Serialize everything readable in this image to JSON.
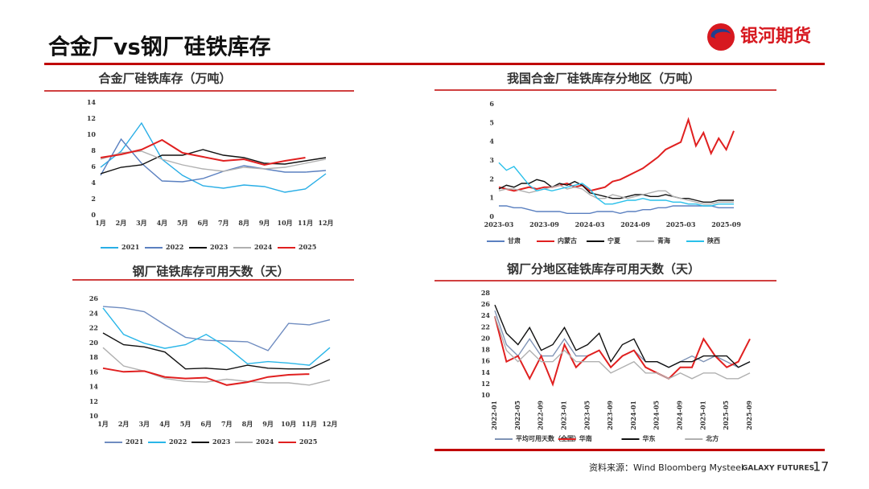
{
  "header": {
    "title": "合金厂vs钢厂硅铁库存",
    "logo_text": "银河期货"
  },
  "footer": {
    "source": "资料来源：Wind Bloomberg Mysteel",
    "brand": "GALAXY FUTURES",
    "page": "17"
  },
  "chart_data": [
    {
      "type": "line",
      "title": "合金厂硅铁库存（万吨）",
      "categories": [
        "1月",
        "2月",
        "3月",
        "4月",
        "5月",
        "6月",
        "7月",
        "8月",
        "9月",
        "10月",
        "11月",
        "12月"
      ],
      "ylim": [
        0,
        14
      ],
      "yticks": [
        0,
        2,
        4,
        6,
        8,
        10,
        12,
        14
      ],
      "series": [
        {
          "name": "2021",
          "color": "#29aee6",
          "values": [
            6,
            8,
            11.5,
            7,
            5,
            3.7,
            3.4,
            3.8,
            3.6,
            2.9,
            3.3,
            5.2
          ]
        },
        {
          "name": "2022",
          "color": "#5b80c0",
          "values": [
            5,
            9.5,
            6.5,
            4.3,
            4.2,
            4.6,
            5.5,
            6.2,
            5.8,
            5.4,
            5.4,
            5.6
          ]
        },
        {
          "name": "2023",
          "color": "#111111",
          "values": [
            5.2,
            6,
            6.3,
            7.5,
            7.5,
            8.2,
            7.5,
            7.2,
            6.5,
            6.4,
            6.8,
            7.2
          ]
        },
        {
          "name": "2024",
          "color": "#b0b0b0",
          "values": [
            7,
            7.8,
            8,
            7,
            6.3,
            5.8,
            5.5,
            6,
            5.8,
            6,
            6.5,
            7
          ]
        },
        {
          "name": "2025",
          "color": "#e02020",
          "values": [
            7.2,
            7.6,
            8.2,
            9.4,
            7.8,
            7.3,
            6.8,
            7,
            6.3,
            6.8,
            7.2,
            null
          ]
        }
      ]
    },
    {
      "type": "line",
      "title": "我国合金厂硅铁库存分地区（万吨）",
      "categories": [
        "2023-03",
        null,
        null,
        null,
        null,
        null,
        "2023-09",
        null,
        null,
        null,
        null,
        null,
        "2024-03",
        null,
        null,
        null,
        null,
        null,
        "2024-09",
        null,
        null,
        null,
        null,
        null,
        "2025-03",
        null,
        null,
        null,
        null,
        null,
        "2025-09",
        null
      ],
      "ylim": [
        0,
        6
      ],
      "yticks": [
        0,
        1,
        2,
        3,
        4,
        5,
        6
      ],
      "series": [
        {
          "name": "甘肃",
          "color": "#5b80c0",
          "values": [
            0.6,
            0.6,
            0.5,
            0.5,
            0.4,
            0.3,
            0.3,
            0.3,
            0.3,
            0.2,
            0.2,
            0.2,
            0.2,
            0.3,
            0.3,
            0.3,
            0.2,
            0.3,
            0.3,
            0.4,
            0.4,
            0.5,
            0.5,
            0.6,
            0.6,
            0.6,
            0.6,
            0.6,
            0.6,
            0.5,
            0.5,
            0.5
          ]
        },
        {
          "name": "内蒙古",
          "color": "#e02020",
          "values": [
            1.6,
            1.5,
            1.4,
            1.5,
            1.6,
            1.5,
            1.6,
            1.6,
            1.7,
            1.8,
            1.6,
            1.7,
            1.4,
            1.5,
            1.6,
            1.9,
            2.0,
            2.2,
            2.4,
            2.6,
            2.9,
            3.2,
            3.6,
            3.8,
            4.0,
            5.2,
            3.8,
            4.5,
            3.4,
            4.2,
            3.6,
            4.6
          ]
        },
        {
          "name": "宁夏",
          "color": "#111111",
          "values": [
            1.5,
            1.7,
            1.6,
            1.8,
            1.8,
            2.0,
            1.9,
            1.6,
            1.8,
            1.7,
            1.9,
            1.7,
            1.3,
            1.2,
            1.1,
            1.0,
            1.0,
            1.1,
            1.2,
            1.2,
            1.1,
            1.1,
            1.2,
            1.1,
            1.0,
            1.0,
            0.9,
            0.8,
            0.8,
            0.9,
            0.9,
            0.9
          ]
        },
        {
          "name": "青海",
          "color": "#b0b0b0",
          "values": [
            1.4,
            1.5,
            1.5,
            1.4,
            1.3,
            1.4,
            1.5,
            1.6,
            1.7,
            1.5,
            1.6,
            1.5,
            1.2,
            1.0,
            1.0,
            1.2,
            1.1,
            1.0,
            1.1,
            1.2,
            1.3,
            1.4,
            1.4,
            1.1,
            1.0,
            0.9,
            0.8,
            0.7,
            0.7,
            0.8,
            0.8,
            0.8
          ]
        },
        {
          "name": "陕西",
          "color": "#29c0ea",
          "values": [
            2.9,
            2.5,
            2.7,
            2.2,
            1.7,
            1.4,
            1.5,
            1.4,
            1.5,
            1.6,
            1.7,
            1.8,
            1.5,
            1.0,
            0.7,
            0.7,
            0.8,
            0.9,
            0.9,
            1.0,
            0.9,
            0.9,
            0.9,
            0.8,
            0.8,
            0.7,
            0.7,
            0.6,
            0.6,
            0.7,
            0.7,
            0.7
          ]
        }
      ]
    },
    {
      "type": "line",
      "title": "钢厂硅铁库存可用天数（天）",
      "categories": [
        "1月",
        "2月",
        "3月",
        "4月",
        "5月",
        "6月",
        "7月",
        "8月",
        "9月",
        "10月",
        "11月",
        "12月"
      ],
      "ylim": [
        10,
        26
      ],
      "yticks": [
        10,
        12,
        14,
        16,
        18,
        20,
        22,
        24,
        26
      ],
      "series": [
        {
          "name": "2021",
          "color": "#6f8cc0",
          "values": [
            25,
            24.8,
            24.3,
            22.5,
            20.8,
            20.4,
            20.3,
            20.2,
            19,
            22.7,
            22.5,
            23.2
          ]
        },
        {
          "name": "2022",
          "color": "#29b6e8",
          "values": [
            24.8,
            21.2,
            20,
            19.3,
            19.8,
            21.2,
            19.5,
            17.2,
            17.5,
            17.3,
            17,
            19.4
          ]
        },
        {
          "name": "2023",
          "color": "#111111",
          "values": [
            21.4,
            19.8,
            19.5,
            18.8,
            16.5,
            16.6,
            16.4,
            17,
            16.6,
            16.5,
            16.5,
            17.8
          ]
        },
        {
          "name": "2024",
          "color": "#b0b0b0",
          "values": [
            19.4,
            16.9,
            16.2,
            15.2,
            14.8,
            14.7,
            15.1,
            14.8,
            14.6,
            14.6,
            14.3,
            15.0
          ]
        },
        {
          "name": "2025",
          "color": "#e02020",
          "values": [
            16.6,
            16.1,
            16.2,
            15.4,
            15.2,
            15.3,
            14.3,
            14.7,
            15.4,
            15.7,
            15.8,
            null
          ]
        }
      ]
    },
    {
      "type": "line",
      "title": "钢厂分地区硅铁库存可用天数（天）",
      "categories": [
        "2022-01",
        null,
        "2022-05",
        null,
        "2022-09",
        null,
        "2023-01",
        null,
        "2023-05",
        null,
        "2023-09",
        null,
        "2024-01",
        null,
        "2024-05",
        null,
        "2024-09",
        null,
        "2025-01",
        null,
        "2025-05",
        null,
        "2025-09"
      ],
      "ylim": [
        10,
        28
      ],
      "yticks": [
        10,
        12,
        14,
        16,
        18,
        20,
        22,
        24,
        26,
        28
      ],
      "series": [
        {
          "name": "平均可用天数（全国）",
          "color": "#7f93b5",
          "values": [
            25,
            19,
            17,
            20,
            17,
            17,
            20,
            17,
            17,
            18,
            15,
            17,
            18,
            16,
            16,
            15,
            16,
            17,
            16,
            17,
            16,
            15,
            16
          ]
        },
        {
          "name": "华南",
          "color": "#e02020",
          "values": [
            24,
            16,
            17,
            13,
            17,
            12,
            19,
            15,
            17,
            18,
            15,
            17,
            18,
            15,
            14,
            13,
            15,
            15,
            20,
            17,
            15,
            16,
            20
          ]
        },
        {
          "name": "华东",
          "color": "#111111",
          "values": [
            26,
            21,
            19,
            22,
            18,
            19,
            22,
            18,
            19,
            21,
            16,
            19,
            20,
            16,
            16,
            15,
            16,
            16,
            17,
            17,
            17,
            15,
            16
          ]
        },
        {
          "name": "北方",
          "color": "#b0b0b0",
          "values": [
            24,
            18,
            16,
            18,
            16,
            16,
            18,
            16,
            16,
            16,
            14,
            15,
            16,
            14,
            14,
            13,
            14,
            13,
            14,
            14,
            13,
            13,
            14
          ]
        }
      ]
    }
  ]
}
